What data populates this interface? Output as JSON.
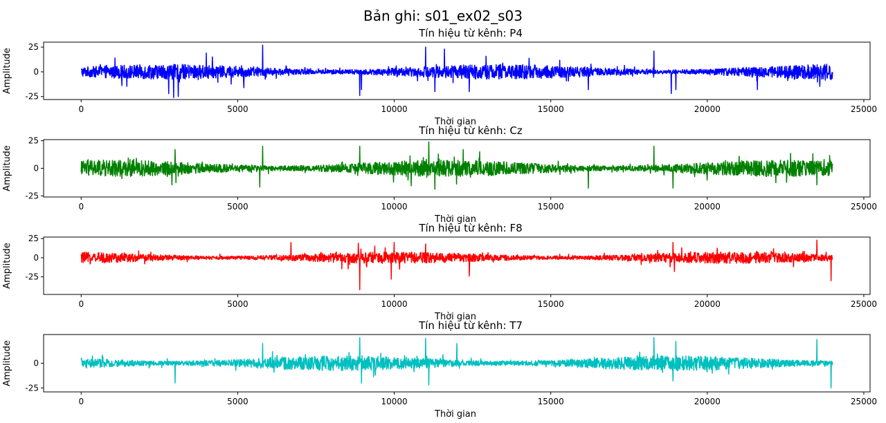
{
  "figure": {
    "title": "Bản ghi: s01_ex02_s03"
  },
  "chart_data": [
    {
      "type": "line",
      "title": "Tín hiệu từ kênh: P4",
      "xlabel": "Thời gian",
      "ylabel": "Amplitude",
      "xlim": [
        -1200,
        25200
      ],
      "ylim": [
        -28,
        30
      ],
      "xticks": [
        0,
        5000,
        10000,
        15000,
        20000,
        25000
      ],
      "yticks": [
        -25,
        0,
        25
      ],
      "n_points": 24000,
      "series": [
        {
          "color": "#0000ff",
          "amplitude_typical": 5,
          "min": -26,
          "max": 27,
          "peaks": [
            [
              2800,
              -22
            ],
            [
              2950,
              -26
            ],
            [
              3100,
              -25
            ],
            [
              4000,
              19
            ],
            [
              5800,
              27
            ],
            [
              5200,
              -16
            ],
            [
              8900,
              20
            ],
            [
              8950,
              -18
            ],
            [
              8900,
              -24
            ],
            [
              11000,
              25
            ],
            [
              11300,
              -20
            ],
            [
              11600,
              23
            ],
            [
              12400,
              -20
            ],
            [
              16200,
              -18
            ],
            [
              18300,
              21
            ],
            [
              18850,
              -22
            ],
            [
              19000,
              -18
            ],
            [
              21600,
              -18
            ],
            [
              23950,
              -8
            ]
          ]
        }
      ]
    },
    {
      "type": "line",
      "title": "Tín hiệu từ kênh: Cz",
      "xlabel": "Thời gian",
      "ylabel": "Amplitude",
      "xlim": [
        -1200,
        25200
      ],
      "ylim": [
        -26,
        26
      ],
      "xticks": [
        0,
        5000,
        10000,
        15000,
        20000,
        25000
      ],
      "yticks": [
        -25,
        0,
        25
      ],
      "n_points": 24000,
      "series": [
        {
          "color": "#008000",
          "amplitude_typical": 5,
          "min": -24,
          "max": 24,
          "peaks": [
            [
              3000,
              -24
            ],
            [
              2900,
              -15
            ],
            [
              3000,
              17
            ],
            [
              5800,
              20
            ],
            [
              5700,
              -17
            ],
            [
              8900,
              20
            ],
            [
              11100,
              24
            ],
            [
              11300,
              -19
            ],
            [
              12200,
              17
            ],
            [
              16200,
              -18
            ],
            [
              18300,
              20
            ],
            [
              18900,
              -18
            ],
            [
              23500,
              -15
            ]
          ]
        }
      ]
    },
    {
      "type": "line",
      "title": "Tín hiệu từ kênh: F8",
      "xlabel": "Thời gian",
      "ylabel": "Amplitude",
      "xlim": [
        -1200,
        25200
      ],
      "ylim": [
        -48,
        27
      ],
      "xticks": [
        0,
        5000,
        10000,
        15000,
        20000,
        25000
      ],
      "yticks": [
        -25,
        0,
        25
      ],
      "n_points": 24000,
      "series": [
        {
          "color": "#ff0000",
          "amplitude_typical": 5,
          "min": -42,
          "max": 23,
          "peaks": [
            [
              8900,
              -42
            ],
            [
              8850,
              19
            ],
            [
              6700,
              20
            ],
            [
              9900,
              -28
            ],
            [
              10000,
              20
            ],
            [
              11000,
              18
            ],
            [
              12400,
              -24
            ],
            [
              18900,
              20
            ],
            [
              18950,
              -18
            ],
            [
              23500,
              23
            ],
            [
              23950,
              -30
            ]
          ]
        }
      ]
    },
    {
      "type": "line",
      "title": "Tín hiệu từ kênh: T7",
      "xlabel": "Thời gian",
      "ylabel": "Amplitude",
      "xlim": [
        -1200,
        25200
      ],
      "ylim": [
        -29,
        29
      ],
      "xticks": [
        0,
        5000,
        10000,
        15000,
        20000,
        25000
      ],
      "yticks": [
        -25,
        0
      ],
      "n_points": 24000,
      "series": [
        {
          "color": "#00bfbf",
          "amplitude_typical": 5,
          "min": -25,
          "max": 27,
          "peaks": [
            [
              3000,
              -20
            ],
            [
              5800,
              20
            ],
            [
              8900,
              26
            ],
            [
              8950,
              -20
            ],
            [
              11000,
              25
            ],
            [
              11100,
              -22
            ],
            [
              12000,
              20
            ],
            [
              18300,
              26
            ],
            [
              18900,
              -18
            ],
            [
              19000,
              22
            ],
            [
              23500,
              24
            ],
            [
              23950,
              -25
            ]
          ]
        }
      ]
    }
  ]
}
